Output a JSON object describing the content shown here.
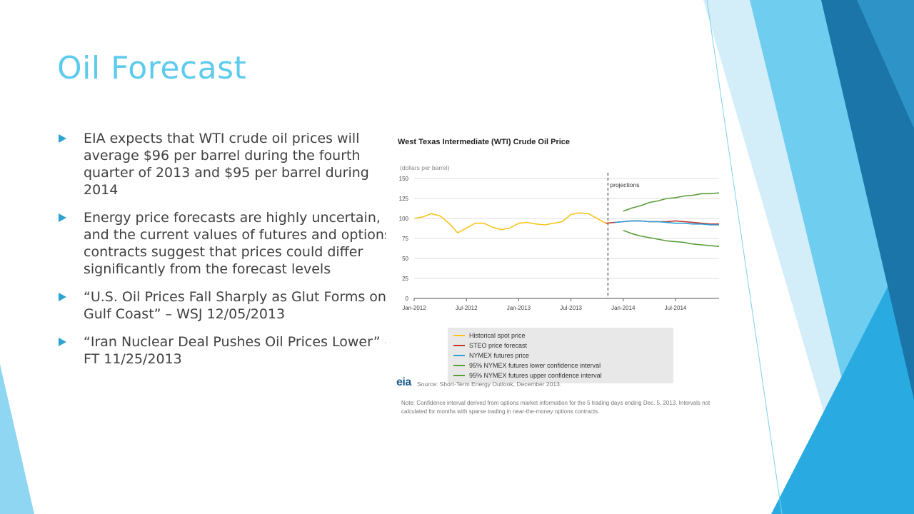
{
  "slide": {
    "title": "Oil Forecast",
    "accent_color": "#5ecbec",
    "bullets": [
      " EIA expects that WTI crude oil prices will average $96 per barrel during the fourth quarter of 2013 and $95 per barrel during 2014",
      "Energy price forecasts are highly uncertain, and the current values of futures and options contracts suggest that prices could differ significantly from the forecast levels",
      "“U.S. Oil Prices Fall Sharply as Glut Forms on Gulf Coast” – WSJ 12/05/2013",
      "“Iran Nuclear Deal Pushes Oil Prices Lower” – FT 11/25/2013"
    ]
  },
  "chart_data": {
    "type": "line",
    "title": "West Texas Intermediate (WTI) Crude Oil Price",
    "ylabel": "(dollars per barrel)",
    "ylim": [
      0,
      150
    ],
    "yticks": [
      "0",
      "25",
      "50",
      "75",
      "100",
      "125",
      "150"
    ],
    "xtick_labels": [
      "Jan-2012",
      "Jul-2012",
      "Jan-2013",
      "Jul-2013",
      "Jan-2014",
      "Jul-2014"
    ],
    "annotation": "projections",
    "grid": "horizontal",
    "series": [
      {
        "name": "Historical spot price",
        "color": "#f7c51e",
        "x": [
          "2012-01",
          "2012-02",
          "2012-03",
          "2012-04",
          "2012-05",
          "2012-06",
          "2012-07",
          "2012-08",
          "2012-09",
          "2012-10",
          "2012-11",
          "2012-12",
          "2013-01",
          "2013-02",
          "2013-03",
          "2013-04",
          "2013-05",
          "2013-06",
          "2013-07",
          "2013-08",
          "2013-09",
          "2013-10",
          "2013-11"
        ],
        "values": [
          100,
          102,
          106,
          103,
          94,
          82,
          88,
          94,
          94,
          89,
          86,
          88,
          94,
          95,
          93,
          92,
          94,
          96,
          105,
          107,
          106,
          100,
          94
        ]
      },
      {
        "name": "STEO price forecast",
        "color": "#c0392b",
        "x": [
          "2013-11",
          "2013-12",
          "2014-01",
          "2014-02",
          "2014-03",
          "2014-04",
          "2014-05",
          "2014-06",
          "2014-07",
          "2014-08",
          "2014-09",
          "2014-10",
          "2014-11",
          "2014-12"
        ],
        "values": [
          94,
          95,
          96,
          97,
          97,
          96,
          96,
          96,
          97,
          96,
          95,
          94,
          93,
          93
        ]
      },
      {
        "name": "NYMEX futures price",
        "color": "#2e9fd8",
        "x": [
          "2013-12",
          "2014-01",
          "2014-02",
          "2014-03",
          "2014-04",
          "2014-05",
          "2014-06",
          "2014-07",
          "2014-08",
          "2014-09",
          "2014-10",
          "2014-11",
          "2014-12"
        ],
        "values": [
          95,
          96,
          97,
          97,
          96,
          96,
          95,
          94,
          94,
          93,
          93,
          92,
          92
        ]
      },
      {
        "name": "95% NYMEX futures lower confidence interval",
        "color": "#5a9e3a",
        "x": [
          "2014-01",
          "2014-02",
          "2014-03",
          "2014-04",
          "2014-05",
          "2014-06",
          "2014-07",
          "2014-08",
          "2014-09",
          "2014-10",
          "2014-11",
          "2014-12"
        ],
        "values": [
          85,
          81,
          78,
          76,
          74,
          72,
          71,
          70,
          68,
          67,
          66,
          65
        ]
      },
      {
        "name": "95% NYMEX futures upper confidence interval",
        "color": "#5a9e3a",
        "x": [
          "2014-01",
          "2014-02",
          "2014-03",
          "2014-04",
          "2014-05",
          "2014-06",
          "2014-07",
          "2014-08",
          "2014-09",
          "2014-10",
          "2014-11",
          "2014-12"
        ],
        "values": [
          109,
          113,
          116,
          120,
          122,
          125,
          126,
          128,
          129,
          131,
          131,
          132
        ]
      }
    ],
    "source": "Source: Short-Term Energy Outlook, December 2013.",
    "note": "Note: Confidence interval derived from options market information for the 5 trading days ending Dec. 5, 2013. Intervals not calculated for months with sparse trading in near-the-money options contracts.",
    "logo_text": "eia"
  }
}
